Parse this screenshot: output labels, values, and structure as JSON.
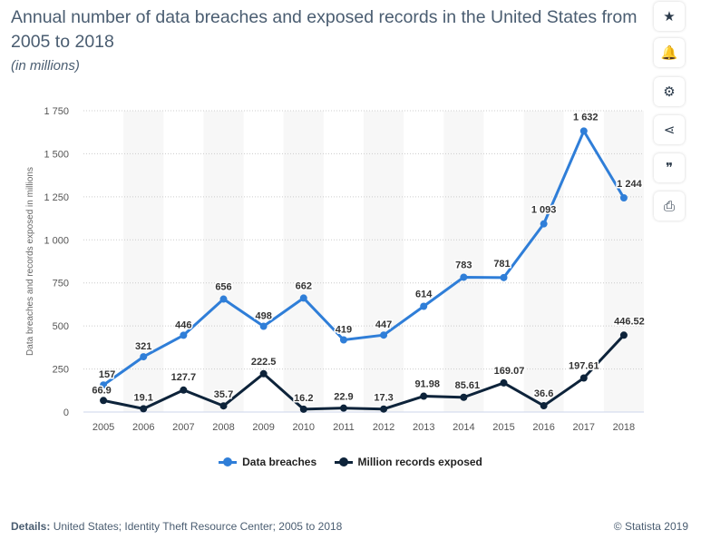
{
  "header": {
    "title": "Annual number of data breaches and exposed records in the United States from 2005 to 2018",
    "subtitle": "(in millions)"
  },
  "toolbar": {
    "items": [
      {
        "name": "star-icon",
        "glyph": "★"
      },
      {
        "name": "bell-icon",
        "glyph": "🔔"
      },
      {
        "name": "gear-icon",
        "glyph": "⚙"
      },
      {
        "name": "share-icon",
        "glyph": "⋖"
      },
      {
        "name": "quote-icon",
        "glyph": "❞"
      },
      {
        "name": "print-icon",
        "glyph": "⎙"
      }
    ]
  },
  "footer": {
    "details_label": "Details:",
    "details_text": "United States; Identity Theft Resource Center; 2005 to 2018",
    "copyright": "© Statista 2019"
  },
  "colors": {
    "breaches": "#2f7ed8",
    "records": "#0d233a",
    "band": "#f7f7f7",
    "grid": "#cccccc"
  },
  "chart_data": {
    "type": "line",
    "ylabel": "Data breaches and records exposed in millions",
    "xlabel": "",
    "ylim": [
      0,
      1750
    ],
    "yticks": [
      0,
      250,
      500,
      750,
      1000,
      1250,
      1500,
      1750
    ],
    "ytick_labels": [
      "0",
      "250",
      "500",
      "750",
      "1 000",
      "1 250",
      "1 500",
      "1 750"
    ],
    "categories": [
      "2005",
      "2006",
      "2007",
      "2008",
      "2009",
      "2010",
      "2011",
      "2012",
      "2013",
      "2014",
      "2015",
      "2016",
      "2017",
      "2018"
    ],
    "legend_position": "bottom-center",
    "grid": true,
    "series": [
      {
        "name": "Data breaches",
        "values": [
          157,
          321,
          446,
          656,
          498,
          662,
          419,
          447,
          614,
          783,
          781,
          1093,
          1632,
          1244
        ],
        "labels": [
          "157",
          "321",
          "446",
          "656",
          "498",
          "662",
          "419",
          "447",
          "614",
          "783",
          "781",
          "1 093",
          "1 632",
          "1 244"
        ]
      },
      {
        "name": "Million records exposed",
        "values": [
          66.9,
          19.1,
          127.7,
          35.7,
          222.5,
          16.2,
          22.9,
          17.3,
          91.98,
          85.61,
          169.07,
          36.6,
          197.61,
          446.52
        ],
        "labels": [
          "66.9",
          "19.1",
          "127.7",
          "35.7",
          "222.5",
          "16.2",
          "22.9",
          "17.3",
          "91.98",
          "85.61",
          "169.07",
          "36.6",
          "197.61",
          "446.52"
        ]
      }
    ]
  }
}
